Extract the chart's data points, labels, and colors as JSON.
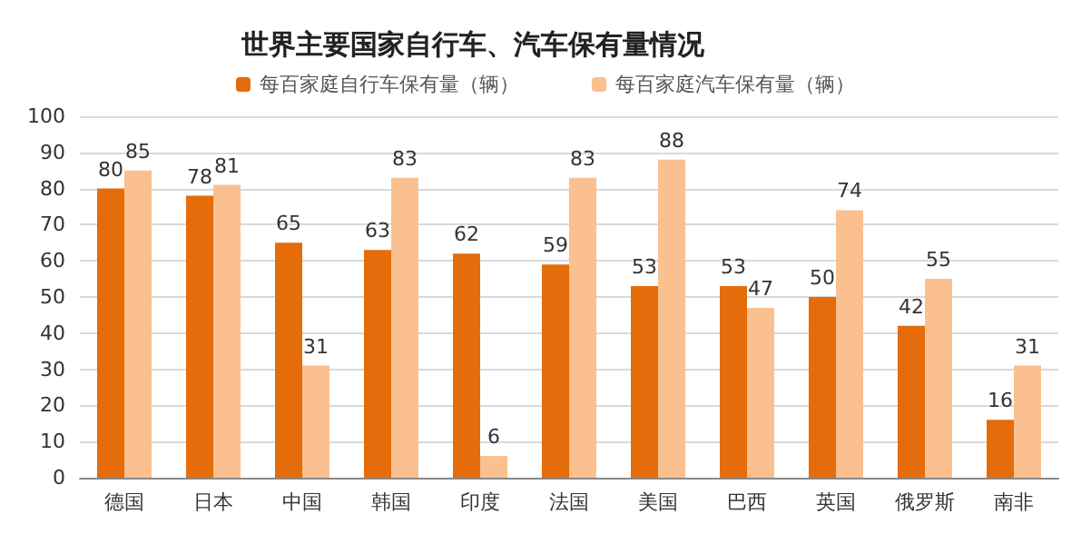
{
  "chart_data": {
    "type": "bar",
    "title": "世界主要国家自行车、汽车保有量情况",
    "categories": [
      "德国",
      "日本",
      "中国",
      "韩国",
      "印度",
      "法国",
      "美国",
      "巴西",
      "英国",
      "俄罗斯",
      "南非"
    ],
    "series": [
      {
        "name": "每百家庭自行车保有量（辆）",
        "color": "#e46c0a",
        "values": [
          80,
          78,
          65,
          63,
          62,
          59,
          53,
          53,
          50,
          42,
          16
        ]
      },
      {
        "name": "每百家庭汽车保有量（辆）",
        "color": "#fac08f",
        "values": [
          85,
          81,
          31,
          83,
          6,
          83,
          88,
          47,
          74,
          55,
          31
        ]
      }
    ],
    "ylim": [
      0,
      100
    ],
    "yticks": [
      0,
      10,
      20,
      30,
      40,
      50,
      60,
      70,
      80,
      90,
      100
    ],
    "grid": "y",
    "legend": "top",
    "data_labels": true
  }
}
